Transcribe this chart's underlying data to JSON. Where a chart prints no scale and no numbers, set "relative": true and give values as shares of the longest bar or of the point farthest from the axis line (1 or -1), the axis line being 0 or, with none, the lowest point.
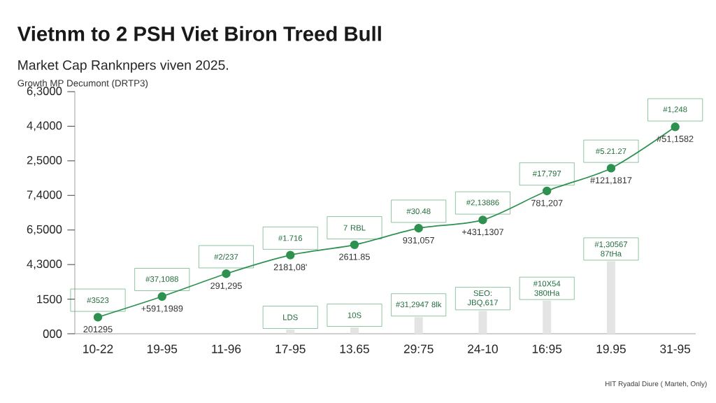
{
  "chart_data": {
    "type": "line",
    "relative": true,
    "title": "Vietnm to 2  PSH Viet Biron Treed Bull",
    "subtitle": "Market Cap Ranknpers viven 2025.",
    "categories": [
      "10-22",
      "19-95",
      "11-96",
      "17-95",
      "13.65",
      "29:75",
      "24-10",
      "16:95",
      "19.95",
      "31-95"
    ],
    "series": [
      {
        "color": "#2e9150",
        "values": [
          0.08,
          0.18,
          0.29,
          0.38,
          0.43,
          0.51,
          0.55,
          0.69,
          0.8,
          1
        ]
      },
      {
        "type": "bar",
        "color": "#e4e4e4",
        "values": [
          null,
          null,
          null,
          0.02,
          0.03,
          0.08,
          0.11,
          0.16,
          0.35,
          null
        ]
      }
    ],
    "marker": "circle",
    "line_style": "solid",
    "annotations": [
      {
        "text": "Growth MP Decumont (DRTP3)"
      },
      {
        "text": "HIT Ryadal Diure ( Marteh, Only)"
      },
      "6,3000",
      "4,4000",
      "2,5000",
      "7,4000",
      "6,5000",
      "4,3000",
      "1500",
      "000",
      {
        "text": "#3523",
        "x": "10-22",
        "y": 0.08
      },
      {
        "text": "#37,1088",
        "x": "19-95",
        "y": 0.18
      },
      {
        "text": "#2/237",
        "x": "11-96",
        "y": 0.29
      },
      {
        "text": "#1.716",
        "x": "17-95",
        "y": 0.38
      },
      {
        "text": "7 RBL",
        "x": "13.65",
        "y": 0.43
      },
      {
        "text": "#30.48",
        "x": "29:75",
        "y": 0.51
      },
      {
        "text": "#2,13886",
        "x": "24-10",
        "y": 0.55
      },
      {
        "text": "#17,797",
        "x": "16:95",
        "y": 0.69
      },
      {
        "text": "#5.21.27",
        "x": "19.95",
        "y": 0.8
      },
      {
        "text": "#1,248",
        "x": "31-95",
        "y": 1
      },
      {
        "text": "201295",
        "x": "10-22",
        "y": 0.08
      },
      {
        "text": "+591,1989",
        "x": "19-95",
        "y": 0.18
      },
      {
        "text": "291,295",
        "x": "11-96",
        "y": 0.29
      },
      {
        "text": "2181,08'",
        "x": "17-95",
        "y": 0.38
      },
      {
        "text": "2611.85",
        "x": "13.65",
        "y": 0.43
      },
      {
        "text": "931,057",
        "x": "29:75",
        "y": 0.51
      },
      {
        "text": "+431,1307",
        "x": "24-10",
        "y": 0.55
      },
      {
        "text": "781,207",
        "x": "16:95",
        "y": 0.69
      },
      {
        "text": "#121,1817",
        "x": "19.95",
        "y": 0.8
      },
      {
        "text": "#51,1582",
        "x": "31-95",
        "y": 1
      },
      {
        "text": "LDS",
        "x": "17-95",
        "y": 0.02
      },
      {
        "text": "10S",
        "x": "13.65",
        "y": 0.03
      },
      {
        "text": "#31,2947 8lk",
        "x": "29:75",
        "y": 0.08
      },
      {
        "text": "SEO: JBQ,617",
        "x": "24-10",
        "y": 0.11
      },
      {
        "text": "#10X54 380tHa",
        "x": "16:95",
        "y": 0.16
      },
      {
        "text": "#1,30567 87tHa",
        "x": "19.95",
        "y": 0.35
      }
    ]
  }
}
